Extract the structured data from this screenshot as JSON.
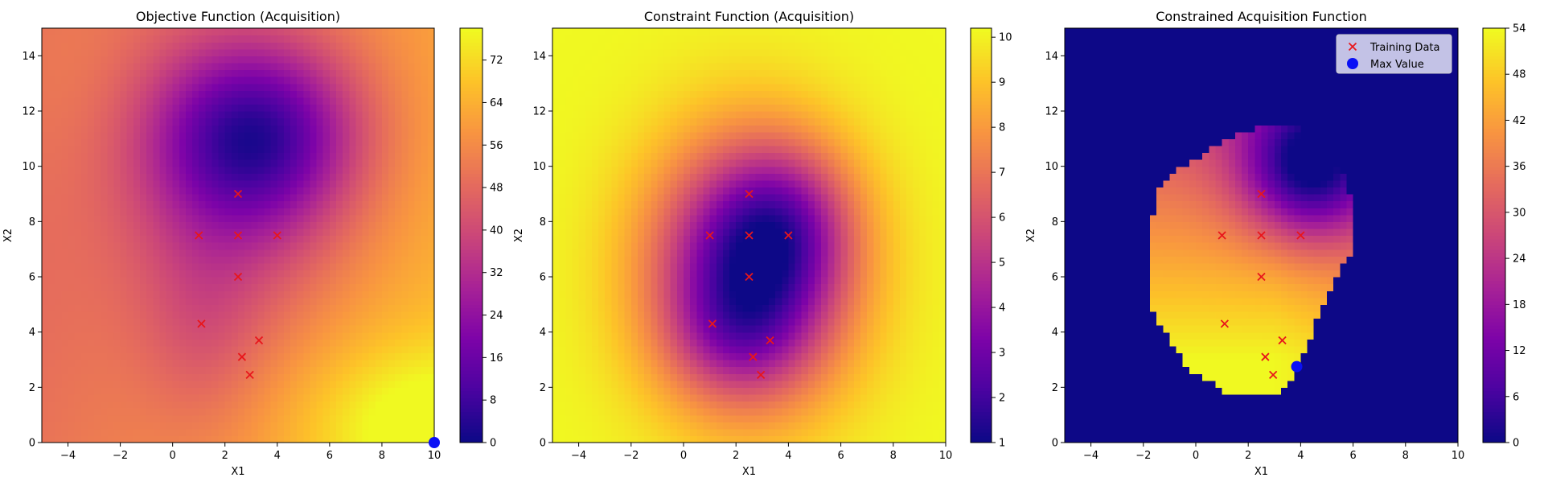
{
  "chart_data": [
    {
      "type": "heatmap",
      "title": "Objective Function (Acquisition)",
      "xlabel": "X1",
      "ylabel": "X2",
      "xlim": [
        -5,
        10
      ],
      "ylim": [
        0,
        15
      ],
      "xticks": [
        -4,
        -2,
        0,
        2,
        4,
        6,
        8,
        10
      ],
      "yticks": [
        0,
        2,
        4,
        6,
        8,
        10,
        12,
        14
      ],
      "colormap": "plasma",
      "colorbar": {
        "min": 0,
        "max": 78,
        "ticks": [
          0,
          8,
          16,
          24,
          32,
          40,
          48,
          56,
          64,
          72
        ]
      },
      "field": "objective",
      "training_points": [
        [
          2.5,
          9.0
        ],
        [
          1.0,
          7.5
        ],
        [
          2.5,
          7.5
        ],
        [
          4.0,
          7.5
        ],
        [
          2.5,
          6.0
        ],
        [
          1.1,
          4.3
        ],
        [
          3.3,
          3.7
        ],
        [
          2.65,
          3.1
        ],
        [
          2.95,
          2.45
        ]
      ],
      "max_point": [
        10.0,
        0.0
      ],
      "legend": null
    },
    {
      "type": "heatmap",
      "title": "Constraint Function (Acquisition)",
      "xlabel": "X1",
      "ylabel": "X2",
      "xlim": [
        -5,
        10
      ],
      "ylim": [
        0,
        15
      ],
      "xticks": [
        -4,
        -2,
        0,
        2,
        4,
        6,
        8,
        10
      ],
      "yticks": [
        0,
        2,
        4,
        6,
        8,
        10,
        12,
        14
      ],
      "colormap": "plasma",
      "colorbar": {
        "min": 1,
        "max": 10.2,
        "ticks": [
          1,
          2,
          3,
          4,
          5,
          6,
          7,
          8,
          9,
          10
        ]
      },
      "field": "constraint",
      "training_points": [
        [
          2.5,
          9.0
        ],
        [
          1.0,
          7.5
        ],
        [
          2.5,
          7.5
        ],
        [
          4.0,
          7.5
        ],
        [
          2.5,
          6.0
        ],
        [
          1.1,
          4.3
        ],
        [
          3.3,
          3.7
        ],
        [
          2.65,
          3.1
        ],
        [
          2.95,
          2.45
        ]
      ],
      "max_point": null,
      "legend": null
    },
    {
      "type": "heatmap",
      "title": "Constrained Acquisition Function",
      "xlabel": "X1",
      "ylabel": "X2",
      "xlim": [
        -5,
        10
      ],
      "ylim": [
        0,
        15
      ],
      "xticks": [
        -4,
        -2,
        0,
        2,
        4,
        6,
        8,
        10
      ],
      "yticks": [
        0,
        2,
        4,
        6,
        8,
        10,
        12,
        14
      ],
      "colormap": "plasma",
      "colorbar": {
        "min": 0,
        "max": 54,
        "ticks": [
          0,
          6,
          12,
          18,
          24,
          30,
          36,
          42,
          48,
          54
        ]
      },
      "field": "constrained",
      "training_points": [
        [
          2.5,
          9.0
        ],
        [
          1.0,
          7.5
        ],
        [
          2.5,
          7.5
        ],
        [
          4.0,
          7.5
        ],
        [
          2.5,
          6.0
        ],
        [
          1.1,
          4.3
        ],
        [
          3.3,
          3.7
        ],
        [
          2.65,
          3.1
        ],
        [
          2.95,
          2.45
        ]
      ],
      "max_point": [
        3.85,
        2.75
      ],
      "legend": {
        "placement": "top-right",
        "entries": [
          "Training Data",
          "Max Value"
        ]
      }
    }
  ],
  "colors": {
    "training_marker": "#e8161b",
    "max_marker": "#0a10f5",
    "legend_bg": "#d3d3ee"
  }
}
